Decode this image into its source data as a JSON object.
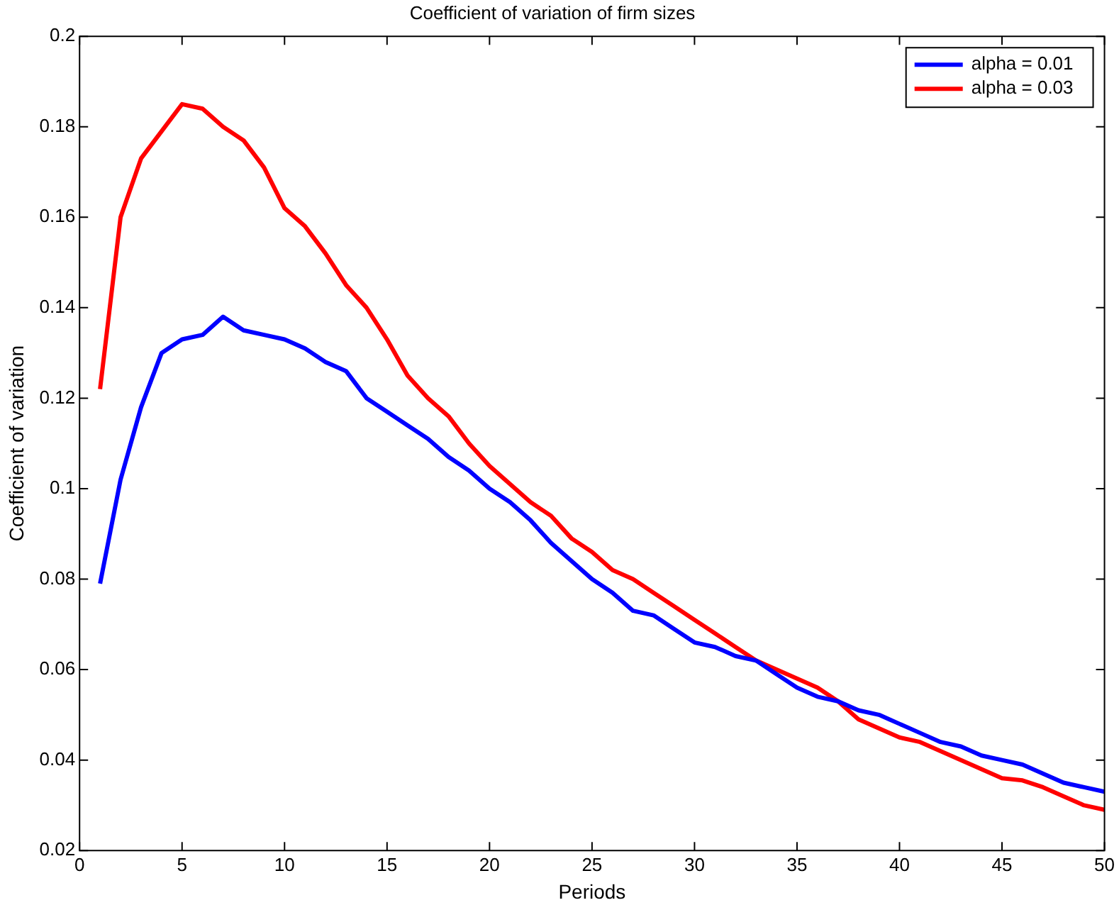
{
  "chart_data": {
    "type": "line",
    "title": "Coefficient of variation of firm sizes",
    "xlabel": "Periods",
    "ylabel": "Coefficient of variation",
    "x": [
      1,
      2,
      3,
      4,
      5,
      6,
      7,
      8,
      9,
      10,
      11,
      12,
      13,
      14,
      15,
      16,
      17,
      18,
      19,
      20,
      21,
      22,
      23,
      24,
      25,
      26,
      27,
      28,
      29,
      30,
      31,
      32,
      33,
      34,
      35,
      36,
      37,
      38,
      39,
      40,
      41,
      42,
      43,
      44,
      45,
      46,
      47,
      48,
      49,
      50
    ],
    "series": [
      {
        "name": "alpha = 0.01",
        "color": "#0000ff",
        "values": [
          0.079,
          0.102,
          0.118,
          0.13,
          0.133,
          0.134,
          0.138,
          0.135,
          0.134,
          0.133,
          0.131,
          0.128,
          0.126,
          0.12,
          0.117,
          0.114,
          0.111,
          0.107,
          0.104,
          0.1,
          0.097,
          0.093,
          0.088,
          0.084,
          0.08,
          0.077,
          0.073,
          0.072,
          0.069,
          0.066,
          0.065,
          0.063,
          0.062,
          0.059,
          0.056,
          0.054,
          0.053,
          0.051,
          0.05,
          0.048,
          0.046,
          0.044,
          0.043,
          0.041,
          0.04,
          0.039,
          0.037,
          0.035,
          0.034,
          0.033
        ]
      },
      {
        "name": "alpha = 0.03",
        "color": "#ff0000",
        "values": [
          0.122,
          0.16,
          0.173,
          0.179,
          0.185,
          0.184,
          0.18,
          0.177,
          0.171,
          0.162,
          0.158,
          0.152,
          0.145,
          0.14,
          0.133,
          0.125,
          0.12,
          0.116,
          0.11,
          0.105,
          0.101,
          0.097,
          0.094,
          0.089,
          0.086,
          0.082,
          0.08,
          0.077,
          0.074,
          0.071,
          0.068,
          0.065,
          0.062,
          0.06,
          0.058,
          0.056,
          0.053,
          0.049,
          0.047,
          0.045,
          0.044,
          0.042,
          0.04,
          0.038,
          0.036,
          0.0355,
          0.034,
          0.032,
          0.03,
          0.029
        ]
      }
    ],
    "xlim": [
      0,
      50
    ],
    "xticks": [
      0,
      5,
      10,
      15,
      20,
      25,
      30,
      35,
      40,
      45,
      50
    ],
    "ylim": [
      0.02,
      0.2
    ],
    "yticks": [
      0.02,
      0.04,
      0.06,
      0.08,
      0.1,
      0.12,
      0.14,
      0.16,
      0.18,
      0.2
    ],
    "grid": false,
    "legend": "top right",
    "marker": "none",
    "line_style": "solid"
  }
}
